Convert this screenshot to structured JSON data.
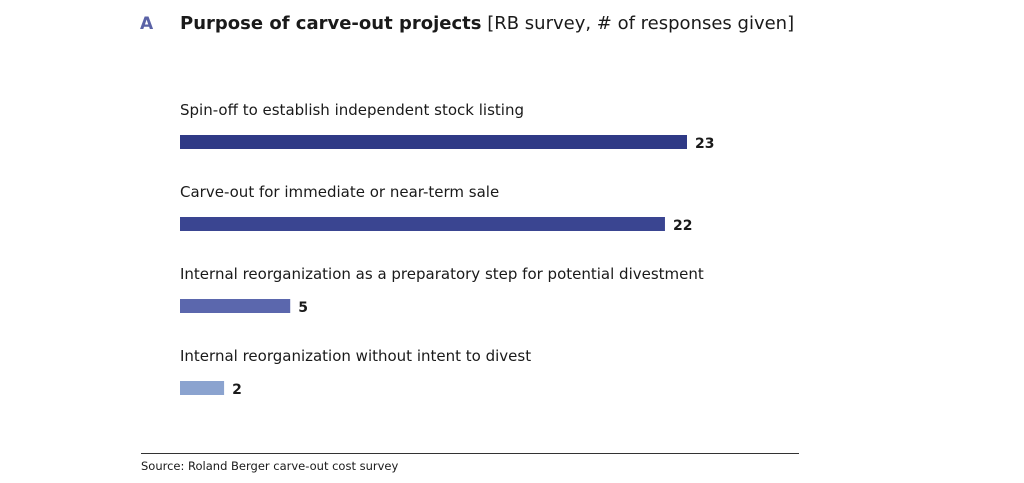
{
  "header": {
    "panel_letter": "A",
    "title": "Purpose of carve-out projects",
    "subtitle": "[RB survey, # of responses given]"
  },
  "chart_data": {
    "type": "bar",
    "orientation": "horizontal",
    "categories": [
      "Spin-off to establish independent stock listing",
      "Carve-out for immediate or near-term sale",
      "Internal reorganization as a preparatory step for potential divestment",
      "Internal reorganization without intent to divest"
    ],
    "values": [
      23,
      22,
      5,
      2
    ],
    "bar_colors": [
      "#2f3a86",
      "#3a4591",
      "#5b67ad",
      "#8ba3cf"
    ],
    "title": "Purpose of carve-out projects",
    "subtitle": "[RB survey, # of responses given]",
    "xlabel": "",
    "ylabel": "",
    "xlim": [
      0,
      23
    ],
    "grid": false,
    "legend": "none",
    "data_labels": true
  },
  "footer": {
    "source": "Source: Roland Berger carve-out cost survey"
  }
}
